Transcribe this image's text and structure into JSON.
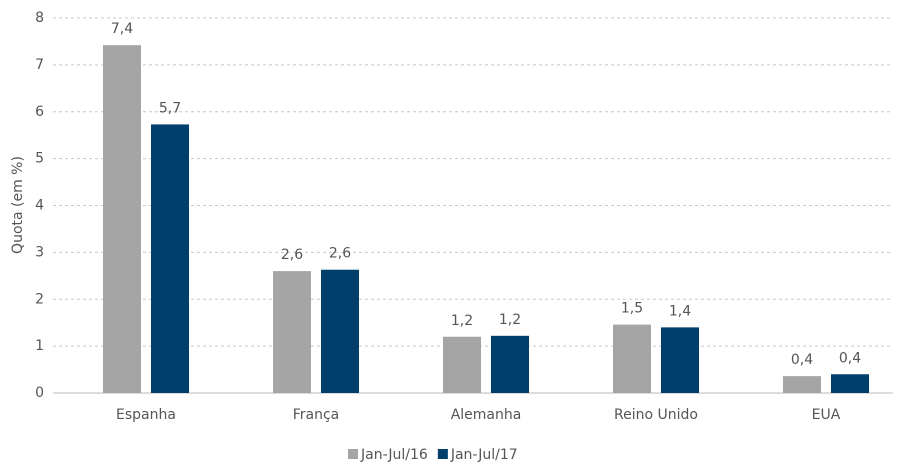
{
  "chart_data": {
    "type": "bar",
    "y_label": "Quota (em %)",
    "categories": [
      "Espanha",
      "França",
      "Alemanha",
      "Reino Unido",
      "EUA"
    ],
    "series": [
      {
        "name": "Jan-Jul/16",
        "color": "#a5a5a5",
        "values": [
          7.42,
          2.6,
          1.2,
          1.46,
          0.36
        ],
        "value_labels": [
          "7,4",
          "2,6",
          "1,2",
          "1,5",
          "0,4"
        ]
      },
      {
        "name": "Jan-Jul/17",
        "color": "#003f6b",
        "values": [
          5.73,
          2.63,
          1.22,
          1.4,
          0.4
        ],
        "value_labels": [
          "5,7",
          "2,6",
          "1,2",
          "1,4",
          "0,4"
        ]
      }
    ],
    "ylim": [
      0,
      8
    ],
    "yticks": [
      0,
      1,
      2,
      3,
      4,
      5,
      6,
      7,
      8
    ],
    "grid": true,
    "legend": "bottom"
  }
}
